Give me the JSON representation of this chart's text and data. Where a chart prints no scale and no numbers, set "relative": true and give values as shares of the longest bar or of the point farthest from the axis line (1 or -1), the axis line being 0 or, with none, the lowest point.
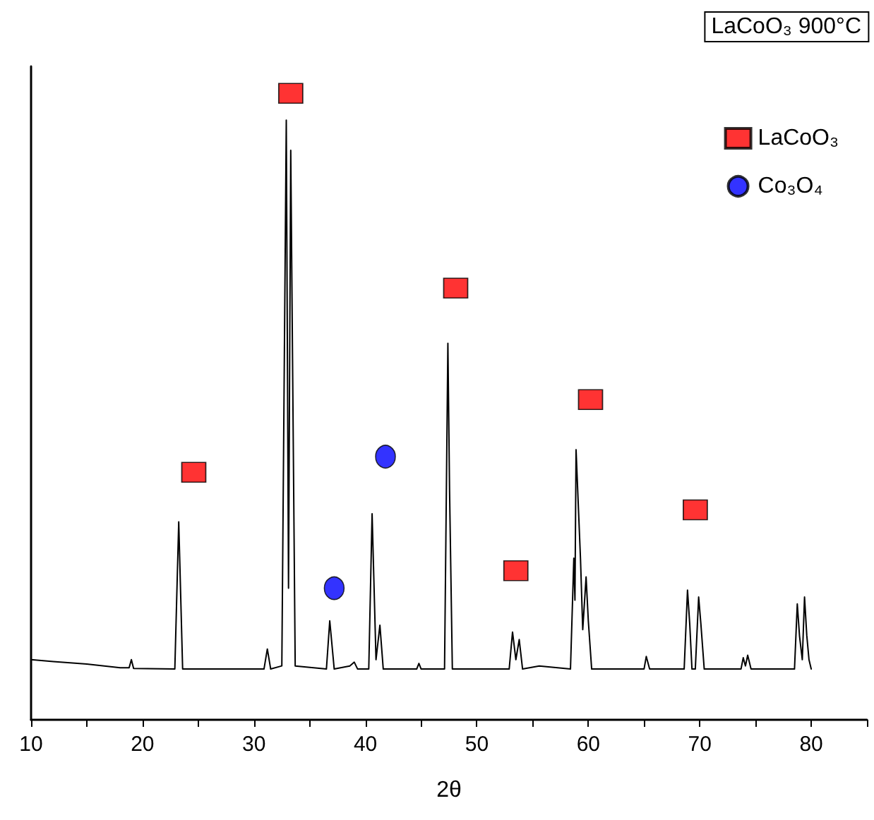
{
  "chart_data": {
    "type": "line",
    "title": "LaCoO₃ 900°C",
    "xlabel": "2θ",
    "relative": true,
    "xlim": [
      10,
      85
    ],
    "xticks": [
      10,
      {
        "value": 15,
        "label": null
      },
      20,
      {
        "value": 25,
        "label": null
      },
      30,
      {
        "value": 35,
        "label": null
      },
      40,
      {
        "value": 45,
        "label": null
      },
      50,
      {
        "value": 55,
        "label": null
      },
      60,
      {
        "value": 65,
        "label": null
      },
      70,
      {
        "value": 75,
        "label": null
      },
      80,
      {
        "value": 85,
        "label": null
      }
    ],
    "legend": "top right",
    "grid": false,
    "series": [
      {
        "color": "#000000",
        "marker": "none",
        "line_style": "solid",
        "x": [
          10,
          12,
          15,
          18,
          18.8,
          19.0,
          19.2,
          22.9,
          23.25,
          23.6,
          30.9,
          31.2,
          31.5,
          32.5,
          32.9,
          33.1,
          33.3,
          33.7,
          36.5,
          36.8,
          37.2,
          38.6,
          39.0,
          39.3,
          40.3,
          40.6,
          40.95,
          41.3,
          41.6,
          44.6,
          44.8,
          45.0,
          47.1,
          47.4,
          47.55,
          47.8,
          52.9,
          53.2,
          53.5,
          53.8,
          54.1,
          55.6,
          58.4,
          58.7,
          58.8,
          58.9,
          59.3,
          59.5,
          59.8,
          60.0,
          60.3,
          65.0,
          65.2,
          65.5,
          68.6,
          68.9,
          69.1,
          69.3,
          69.6,
          69.9,
          70.1,
          70.4,
          73.7,
          73.9,
          74.1,
          74.3,
          74.6,
          78.5,
          78.75,
          78.95,
          79.2,
          79.4,
          79.6,
          79.8,
          80
        ],
        "values": [
          0.096,
          0.093,
          0.089,
          0.083,
          0.083,
          0.096,
          0.082,
          0.081,
          0.316,
          0.081,
          0.081,
          0.113,
          0.081,
          0.086,
          0.957,
          0.21,
          0.909,
          0.086,
          0.081,
          0.158,
          0.081,
          0.086,
          0.092,
          0.081,
          0.081,
          0.329,
          0.096,
          0.151,
          0.081,
          0.081,
          0.09,
          0.081,
          0.081,
          0.601,
          0.367,
          0.081,
          0.081,
          0.14,
          0.096,
          0.128,
          0.081,
          0.086,
          0.081,
          0.258,
          0.191,
          0.431,
          0.256,
          0.144,
          0.228,
          0.158,
          0.081,
          0.081,
          0.101,
          0.081,
          0.081,
          0.207,
          0.153,
          0.081,
          0.081,
          0.196,
          0.153,
          0.081,
          0.081,
          0.099,
          0.086,
          0.103,
          0.081,
          0.081,
          0.185,
          0.134,
          0.096,
          0.196,
          0.135,
          0.096,
          0.081
        ]
      },
      {
        "type": "scatter",
        "name": "LaCoO₃",
        "color": "#ff0000",
        "marker": "square",
        "x": [
          24.6,
          33.3,
          48.1,
          53.5,
          60.2,
          69.6
        ],
        "values": [
          0.395,
          1,
          0.689,
          0.238,
          0.511,
          0.335
        ]
      },
      {
        "type": "scatter",
        "name": "Co₃O₄",
        "color": "#0000ff",
        "marker": "circle",
        "x": [
          37.2,
          41.8
        ],
        "values": [
          0.21,
          0.42
        ]
      }
    ]
  }
}
